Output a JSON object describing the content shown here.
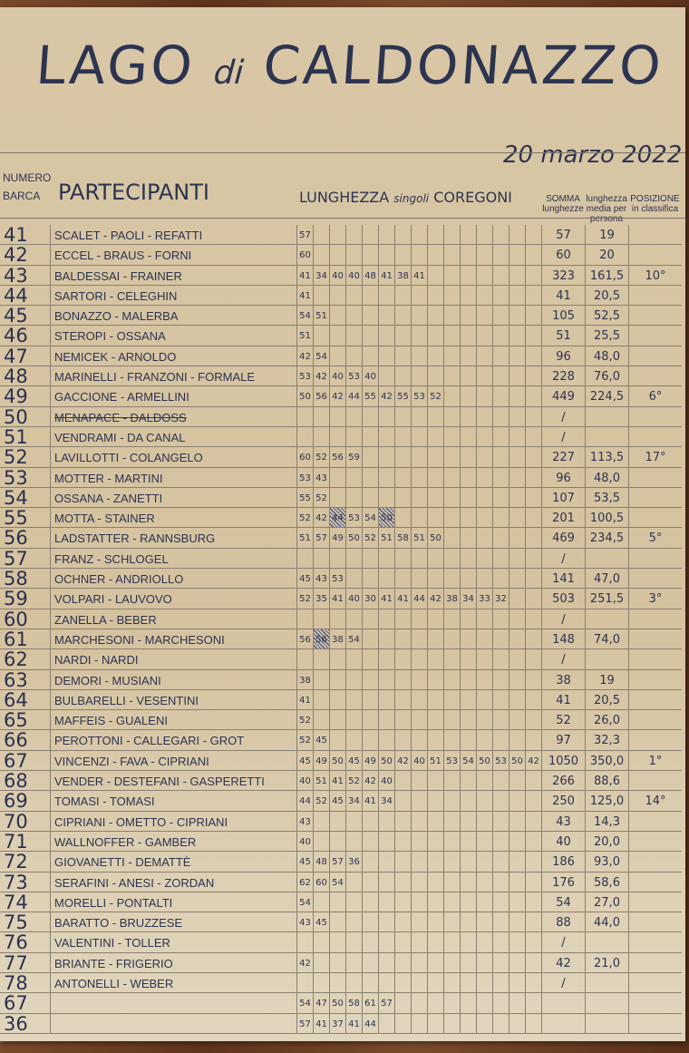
{
  "title": {
    "main": "LAGO",
    "di": "di",
    "place": "CALDONAZZO"
  },
  "date": "20 marzo 2022",
  "headers": {
    "number": "NUMERO BARCA",
    "participants": "PARTECIPANTI",
    "length": "LUNGHEZZA",
    "length_sub": "singoli",
    "length_tail": "COREGONI",
    "sum": "SOMMA lunghezze",
    "avg": "lunghezza media per persona",
    "position": "POSIZIONE in classifica"
  },
  "rows": [
    {
      "n": "41",
      "name": "SCALET - PAOLI - REFATTI",
      "lengths": [
        "57"
      ],
      "sum": "57",
      "avg": "19",
      "pos": ""
    },
    {
      "n": "42",
      "name": "ECCEL - BRAUS - FORNI",
      "lengths": [
        "60"
      ],
      "sum": "60",
      "avg": "20",
      "pos": ""
    },
    {
      "n": "43",
      "name": "BALDESSAI - FRAINER",
      "lengths": [
        "41",
        "34",
        "40",
        "40",
        "48",
        "41",
        "38",
        "41"
      ],
      "sum": "323",
      "avg": "161,5",
      "pos": "10°"
    },
    {
      "n": "44",
      "name": "SARTORI - CELEGHIN",
      "lengths": [
        "41"
      ],
      "sum": "41",
      "avg": "20,5",
      "pos": ""
    },
    {
      "n": "45",
      "name": "BONAZZO - MALERBA",
      "lengths": [
        "54",
        "51"
      ],
      "sum": "105",
      "avg": "52,5",
      "pos": ""
    },
    {
      "n": "46",
      "name": "STEROPI - OSSANA",
      "lengths": [
        "51"
      ],
      "sum": "51",
      "avg": "25,5",
      "pos": ""
    },
    {
      "n": "47",
      "name": "NEMICEK - ARNOLDO",
      "lengths": [
        "42",
        "54"
      ],
      "sum": "96",
      "avg": "48,0",
      "pos": ""
    },
    {
      "n": "48",
      "name": "MARINELLI - FRANZONI - FORMALE",
      "lengths": [
        "53",
        "42",
        "40",
        "53",
        "40"
      ],
      "sum": "228",
      "avg": "76,0",
      "pos": ""
    },
    {
      "n": "49",
      "name": "GACCIONE - ARMELLINI",
      "lengths": [
        "50",
        "56",
        "42",
        "44",
        "55",
        "42",
        "55",
        "53",
        "52"
      ],
      "sum": "449",
      "avg": "224,5",
      "pos": "6°"
    },
    {
      "n": "50",
      "name": "MENAPACE - DALDOSS",
      "struck": true,
      "lengths": [],
      "sum": "/",
      "avg": "",
      "pos": ""
    },
    {
      "n": "51",
      "name": "VENDRAMI - DA CANAL",
      "lengths": [],
      "sum": "/",
      "avg": "",
      "pos": ""
    },
    {
      "n": "52",
      "name": "LAVILLOTTI - COLANGELO",
      "lengths": [
        "60",
        "52",
        "56",
        "59"
      ],
      "sum": "227",
      "avg": "113,5",
      "pos": "17°"
    },
    {
      "n": "53",
      "name": "MOTTER - MARTINI",
      "lengths": [
        "53",
        "43"
      ],
      "sum": "96",
      "avg": "48,0",
      "pos": ""
    },
    {
      "n": "54",
      "name": "OSSANA - ZANETTI",
      "lengths": [
        "55",
        "52"
      ],
      "sum": "107",
      "avg": "53,5",
      "pos": ""
    },
    {
      "n": "55",
      "name": "MOTTA - STAINER",
      "lengths": [
        "52",
        "42",
        "44",
        "53",
        "54",
        "50"
      ],
      "crossed": [
        2,
        5
      ],
      "sum": "201",
      "avg": "100,5",
      "pos": ""
    },
    {
      "n": "56",
      "name": "LADSTATTER - RANNSBURG",
      "lengths": [
        "51",
        "57",
        "49",
        "50",
        "52",
        "51",
        "58",
        "51",
        "50"
      ],
      "sum": "469",
      "avg": "234,5",
      "pos": "5°"
    },
    {
      "n": "57",
      "name": "FRANZ - SCHLOGEL",
      "lengths": [],
      "sum": "/",
      "avg": "",
      "pos": ""
    },
    {
      "n": "58",
      "name": "OCHNER - ANDRIOLLO",
      "lengths": [
        "45",
        "43",
        "53"
      ],
      "sum": "141",
      "avg": "47,0",
      "pos": ""
    },
    {
      "n": "59",
      "name": "VOLPARI - LAUVOVO",
      "lengths": [
        "52",
        "35",
        "41",
        "40",
        "30",
        "41",
        "41",
        "44",
        "42",
        "38",
        "34",
        "33",
        "32"
      ],
      "sum": "503",
      "avg": "251,5",
      "pos": "3°"
    },
    {
      "n": "60",
      "name": "ZANELLA - BEBER",
      "lengths": [],
      "sum": "/",
      "avg": "",
      "pos": ""
    },
    {
      "n": "61",
      "name": "MARCHESONI - MARCHESONI",
      "lengths": [
        "56",
        "56",
        "38",
        "54"
      ],
      "crossed": [
        1
      ],
      "sum": "148",
      "avg": "74,0",
      "pos": ""
    },
    {
      "n": "62",
      "name": "NARDI - NARDI",
      "lengths": [],
      "sum": "/",
      "avg": "",
      "pos": ""
    },
    {
      "n": "63",
      "name": "DEMORI - MUSIANI",
      "lengths": [
        "38"
      ],
      "sum": "38",
      "avg": "19",
      "pos": ""
    },
    {
      "n": "64",
      "name": "BULBARELLI - VESENTINI",
      "lengths": [
        "41"
      ],
      "sum": "41",
      "avg": "20,5",
      "pos": ""
    },
    {
      "n": "65",
      "name": "MAFFEIS - GUALENI",
      "lengths": [
        "52"
      ],
      "sum": "52",
      "avg": "26,0",
      "pos": ""
    },
    {
      "n": "66",
      "name": "PEROTTONI - CALLEGARI - GROT",
      "lengths": [
        "52",
        "45"
      ],
      "sum": "97",
      "avg": "32,3",
      "pos": ""
    },
    {
      "n": "67",
      "name": "VINCENZI - FAVA - CIPRIANI",
      "lengths": [
        "45",
        "49",
        "50",
        "45",
        "49",
        "50",
        "42",
        "40",
        "51",
        "53",
        "54",
        "50",
        "53",
        "50",
        "42"
      ],
      "sum": "1050",
      "avg": "350,0",
      "pos": "1°"
    },
    {
      "n": "68",
      "name": "VENDER - DESTEFANI - GASPERETTI",
      "lengths": [
        "40",
        "51",
        "41",
        "52",
        "42",
        "40"
      ],
      "sum": "266",
      "avg": "88,6",
      "pos": ""
    },
    {
      "n": "69",
      "name": "TOMASI - TOMASI",
      "lengths": [
        "44",
        "52",
        "45",
        "34",
        "41",
        "34"
      ],
      "sum": "250",
      "avg": "125,0",
      "pos": "14°"
    },
    {
      "n": "70",
      "name": "CIPRIANI - OMETTO - CIPRIANI",
      "lengths": [
        "43"
      ],
      "sum": "43",
      "avg": "14,3",
      "pos": ""
    },
    {
      "n": "71",
      "name": "WALLNOFFER - GAMBER",
      "lengths": [
        "40"
      ],
      "sum": "40",
      "avg": "20,0",
      "pos": ""
    },
    {
      "n": "72",
      "name": "GIOVANETTI - DEMATTÈ",
      "lengths": [
        "45",
        "48",
        "57",
        "36"
      ],
      "sum": "186",
      "avg": "93,0",
      "pos": ""
    },
    {
      "n": "73",
      "name": "SERAFINI - ANESI - ZORDAN",
      "lengths": [
        "62",
        "60",
        "54"
      ],
      "sum": "176",
      "avg": "58,6",
      "pos": ""
    },
    {
      "n": "74",
      "name": "MORELLI - PONTALTI",
      "lengths": [
        "54"
      ],
      "sum": "54",
      "avg": "27,0",
      "pos": ""
    },
    {
      "n": "75",
      "name": "BARATTO - BRUZZESE",
      "lengths": [
        "43",
        "45"
      ],
      "sum": "88",
      "avg": "44,0",
      "pos": ""
    },
    {
      "n": "76",
      "name": "VALENTINI - TOLLER",
      "lengths": [],
      "sum": "/",
      "avg": "",
      "pos": ""
    },
    {
      "n": "77",
      "name": "BRIANTE - FRIGERIO",
      "lengths": [
        "42"
      ],
      "sum": "42",
      "avg": "21,0",
      "pos": ""
    },
    {
      "n": "78",
      "name": "ANTONELLI - WEBER",
      "lengths": [],
      "sum": "/",
      "avg": "",
      "pos": ""
    },
    {
      "n": "67",
      "name": "",
      "lengths": [
        "54",
        "47",
        "50",
        "58",
        "61",
        "57"
      ],
      "sum": "",
      "avg": "",
      "pos": ""
    },
    {
      "n": "36",
      "name": "",
      "lengths": [
        "57",
        "41",
        "37",
        "41",
        "44"
      ],
      "sum": "",
      "avg": "",
      "pos": ""
    }
  ]
}
